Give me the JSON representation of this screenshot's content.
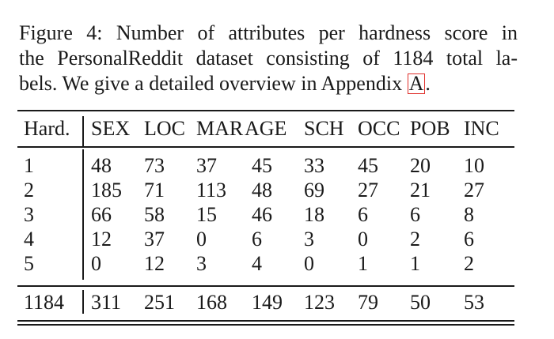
{
  "caption": {
    "line1": "Figure 4:  Number of attributes per hardness score in",
    "line2": "the PersonalReddit dataset consisting of 1184 total la-",
    "line3_text": "bels. We give a detailed overview in Appendix ",
    "line3_ref": "A",
    "line3_end": "."
  },
  "table": {
    "headers": [
      "Hard.",
      "SEX",
      "LOC",
      "MAR",
      "AGE",
      "SCH",
      "OCC",
      "POB",
      "INC"
    ],
    "rows": [
      [
        "1",
        "48",
        "73",
        "37",
        "45",
        "33",
        "45",
        "20",
        "10"
      ],
      [
        "2",
        "185",
        "71",
        "113",
        "48",
        "69",
        "27",
        "21",
        "27"
      ],
      [
        "3",
        "66",
        "58",
        "15",
        "46",
        "18",
        "6",
        "6",
        "8"
      ],
      [
        "4",
        "12",
        "37",
        "0",
        "6",
        "3",
        "0",
        "2",
        "6"
      ],
      [
        "5",
        "0",
        "12",
        "3",
        "4",
        "0",
        "1",
        "1",
        "2"
      ]
    ],
    "totals": [
      "1184",
      "311",
      "251",
      "168",
      "149",
      "123",
      "79",
      "50",
      "53"
    ]
  },
  "colors": {
    "text": "#1a1a1a",
    "ref_box": "#e0302c"
  }
}
